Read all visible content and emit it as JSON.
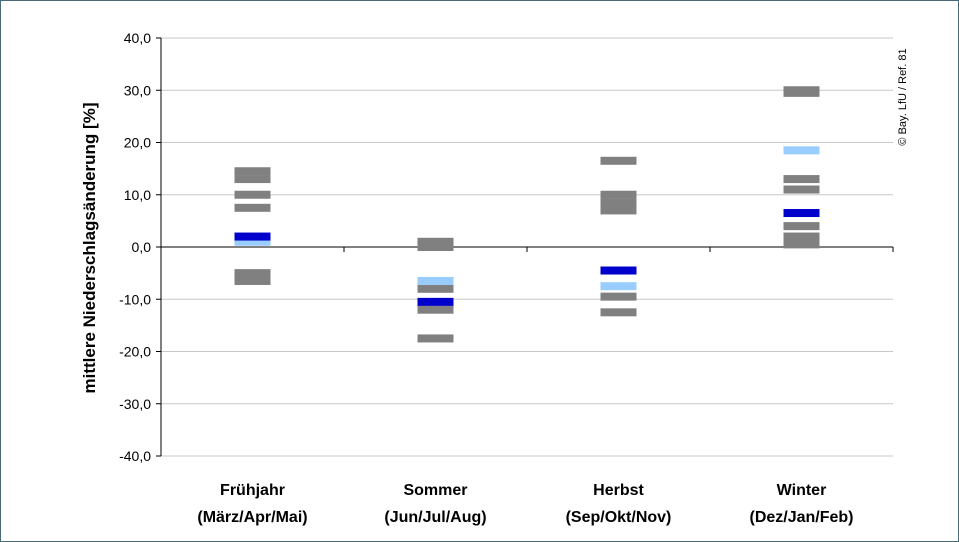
{
  "chart_data": {
    "type": "scatter",
    "ylabel": "mittlere Niederschlagsänderung [%]",
    "ylim": [
      -40,
      40
    ],
    "yticks": [
      40,
      30,
      20,
      10,
      0,
      -10,
      -20,
      -30,
      -40
    ],
    "ytick_labels": [
      "40,0",
      "30,0",
      "20,0",
      "10,0",
      "0,0",
      "-10,0",
      "-20,0",
      "-30,0",
      "-40,0"
    ],
    "grid": true,
    "categories": [
      {
        "line1": "Frühjahr",
        "line2": "(März/Apr/Mai)"
      },
      {
        "line1": "Sommer",
        "line2": "(Jun/Jul/Aug)"
      },
      {
        "line1": "Herbst",
        "line2": "(Sep/Okt/Nov)"
      },
      {
        "line1": "Winter",
        "line2": "(Dez/Jan/Feb)"
      }
    ],
    "colors": {
      "gray": "#808080",
      "lightblue": "#99ccff",
      "blue": "#0000cc"
    },
    "series": [
      {
        "color": "gray",
        "values": [
          [
            14.5,
            13.0,
            10.0,
            7.5,
            -5.0,
            -6.5
          ],
          [
            1.0,
            0.0,
            -8.0,
            -12.0,
            -17.5
          ],
          [
            16.5,
            10.0,
            8.5,
            7.0,
            -9.5,
            -12.5
          ],
          [
            30.0,
            29.5,
            13.0,
            11.0,
            4.0,
            2.0,
            0.5
          ]
        ]
      },
      {
        "color": "lightblue",
        "values": [
          [
            1.0
          ],
          [
            -6.5
          ],
          [
            -7.5
          ],
          [
            18.5
          ]
        ]
      },
      {
        "color": "blue",
        "values": [
          [
            2.0
          ],
          [
            -10.5
          ],
          [
            -4.5
          ],
          [
            6.5
          ]
        ]
      }
    ],
    "credit": "© Bay. LfU / Ref. 81"
  }
}
